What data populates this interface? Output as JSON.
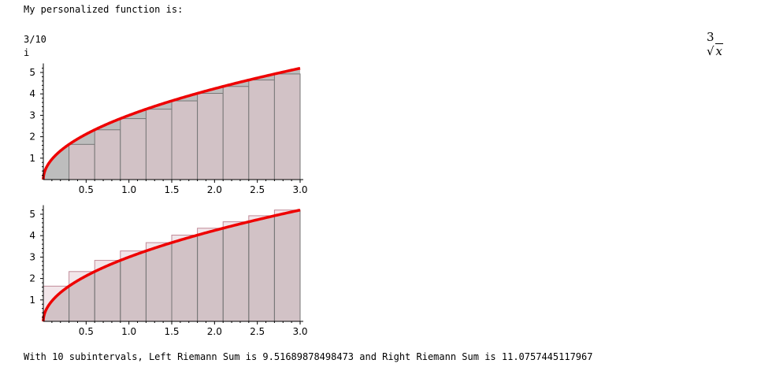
{
  "output": {
    "intro_text": "My personalized function is:",
    "formula_coef": "3",
    "formula_var": "x",
    "step_text": "3/10",
    "var_text": "i",
    "result_text": "With 10 subintervals, Left Riemann Sum is 9.51689878498473 and Right Riemann Sum is 11.0757445117967"
  },
  "chart_data": [
    {
      "type": "area",
      "function": "3*sqrt(x)",
      "rule": "left",
      "subintervals": 10,
      "x": [
        0.0,
        0.3,
        0.6,
        0.9,
        1.2,
        1.5,
        1.8,
        2.1,
        2.4,
        2.7
      ],
      "rect_heights": [
        0.0,
        1.643,
        2.324,
        2.846,
        3.286,
        3.674,
        4.025,
        4.347,
        4.648,
        4.93
      ],
      "xlim": [
        0,
        3.0
      ],
      "ylim": [
        0,
        5.2
      ],
      "x_ticks": [
        "0.5",
        "1.0",
        "1.5",
        "2.0",
        "2.5",
        "3.0"
      ],
      "y_ticks": [
        "1",
        "2",
        "3",
        "4",
        "5"
      ],
      "curve_color": "#ee0000",
      "fill_color": "#d2c2c6",
      "under_fill_color": "#bdbdbd"
    },
    {
      "type": "area",
      "function": "3*sqrt(x)",
      "rule": "right",
      "subintervals": 10,
      "x": [
        0.0,
        0.3,
        0.6,
        0.9,
        1.2,
        1.5,
        1.8,
        2.1,
        2.4,
        2.7
      ],
      "rect_heights": [
        1.643,
        2.324,
        2.846,
        3.286,
        3.674,
        4.025,
        4.347,
        4.648,
        4.93,
        5.196
      ],
      "xlim": [
        0,
        3.0
      ],
      "ylim": [
        0,
        5.2
      ],
      "x_ticks": [
        "0.5",
        "1.0",
        "1.5",
        "2.0",
        "2.5",
        "3.0"
      ],
      "y_ticks": [
        "1",
        "2",
        "3",
        "4",
        "5"
      ],
      "curve_color": "#ee0000",
      "fill_color": "#d2c2c6",
      "over_fill_color": "#f2e6ea"
    }
  ]
}
